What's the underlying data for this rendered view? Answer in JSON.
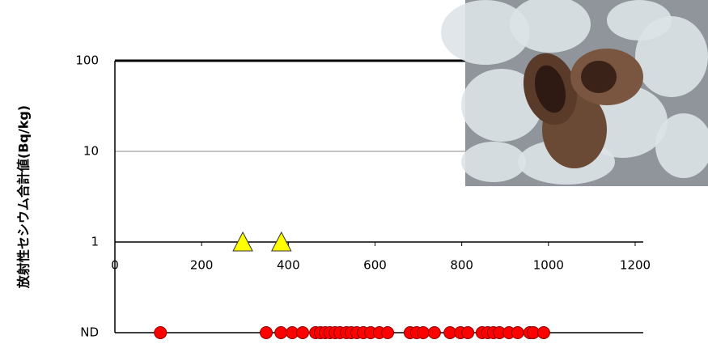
{
  "chart_data": {
    "type": "scatter",
    "y_label": "放射性セシウム合計値(Bq/kg)",
    "xlim": [
      0,
      1200
    ],
    "xticks": [
      0,
      200,
      400,
      600,
      800,
      1000,
      1200
    ],
    "ylim": [
      0.1,
      100
    ],
    "yticks": [
      {
        "value": 0.1,
        "label": "ND"
      },
      1,
      10,
      100
    ],
    "log_y": true,
    "x_axis_crossing": 1,
    "series": [
      {
        "marker": "triangle",
        "color": "#ffff00",
        "x": [
          295,
          384
        ],
        "values": [
          1,
          1
        ]
      },
      {
        "marker": "circle",
        "color": "#ff0000",
        "x": [
          105,
          349,
          383,
          409,
          433,
          463,
          474,
          485,
          496,
          508,
          519,
          534,
          545,
          558,
          573,
          590,
          610,
          629,
          681,
          696,
          711,
          737,
          773,
          797,
          814,
          847,
          860,
          873,
          887,
          909,
          929,
          957,
          965,
          989
        ],
        "values": [
          0.1,
          0.1,
          0.1,
          0.1,
          0.1,
          0.1,
          0.1,
          0.1,
          0.1,
          0.1,
          0.1,
          0.1,
          0.1,
          0.1,
          0.1,
          0.1,
          0.1,
          0.1,
          0.1,
          0.1,
          0.1,
          0.1,
          0.1,
          0.1,
          0.1,
          0.1,
          0.1,
          0.1,
          0.1,
          0.1,
          0.1,
          0.1,
          0.1,
          0.1
        ]
      }
    ]
  }
}
